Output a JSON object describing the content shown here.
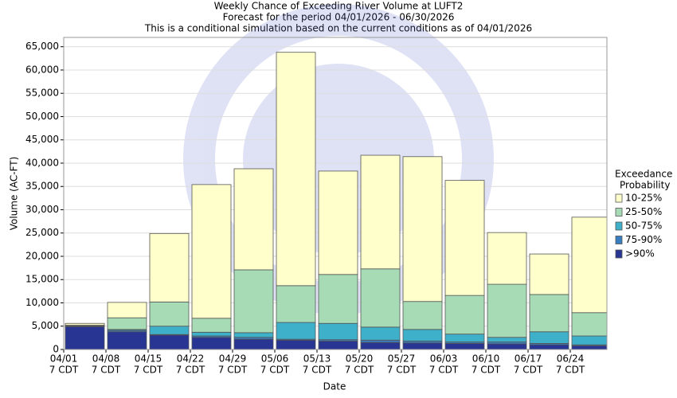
{
  "chart_data": {
    "type": "stacked_bar",
    "title": "Weekly Chance of Exceeding River Volume at LUFT2",
    "subtitle": [
      "Forecast for the period 04/01/2026 - 06/30/2026",
      "This is a conditional simulation based on the current conditions as of 04/01/2026"
    ],
    "x_label": "Date",
    "y_label": "Volume (AC-FT)",
    "categories": [
      "04/01",
      "04/08",
      "04/15",
      "04/22",
      "04/29",
      "05/06",
      "05/13",
      "05/20",
      "05/27",
      "06/03",
      "06/10",
      "06/17",
      "06/24"
    ],
    "category_sublabels": [
      "7 CDT",
      "7 CDT",
      "7 CDT",
      "7 CDT",
      "7 CDT",
      "7 CDT",
      "7 CDT",
      "7 CDT",
      "7 CDT",
      "7 CDT",
      "7 CDT",
      "7 CDT",
      "7 CDT"
    ],
    "legend_title": [
      "Exceedance",
      "Probability"
    ],
    "legend_position": "right",
    "grid": true,
    "ylim": [
      0,
      67000
    ],
    "yticks": [
      0,
      {
        "value": 5000,
        "label": "5,000"
      },
      {
        "value": 10000,
        "label": "10,000"
      },
      {
        "value": 15000,
        "label": "15,000"
      },
      {
        "value": 20000,
        "label": "20,000"
      },
      {
        "value": 25000,
        "label": "25,000"
      },
      {
        "value": 30000,
        "label": "30,000"
      },
      {
        "value": 35000,
        "label": "35,000"
      },
      {
        "value": 40000,
        "label": "40,000"
      },
      {
        "value": 45000,
        "label": "45,000"
      },
      {
        "value": 50000,
        "label": "50,000"
      },
      {
        "value": 55000,
        "label": "55,000"
      },
      {
        "value": 60000,
        "label": "60,000"
      },
      {
        "value": 65000,
        "label": "65,000"
      }
    ],
    "series": [
      {
        "name": ">90%",
        "color": "#283593",
        "values": [
          4900,
          3800,
          3100,
          2600,
          2200,
          2000,
          1800,
          1500,
          1400,
          1300,
          1200,
          1000,
          800
        ]
      },
      {
        "name": "75-90%",
        "color": "#3a7dbf",
        "values": [
          100,
          300,
          100,
          300,
          400,
          200,
          300,
          500,
          400,
          300,
          400,
          300,
          200
        ]
      },
      {
        "name": "50-75%",
        "color": "#3fb0c9",
        "values": [
          100,
          200,
          1800,
          800,
          1000,
          3600,
          3500,
          2800,
          2500,
          1700,
          1000,
          2500,
          1900
        ]
      },
      {
        "name": "25-50%",
        "color": "#a6dbb6",
        "values": [
          100,
          2500,
          5200,
          3000,
          13500,
          7900,
          10500,
          12500,
          6000,
          8300,
          11400,
          8000,
          5000
        ]
      },
      {
        "name": "10-25%",
        "color": "#ffffcc",
        "values": [
          400,
          3300,
          14700,
          28700,
          21700,
          50100,
          22200,
          24400,
          31100,
          24700,
          11100,
          8700,
          20500
        ]
      }
    ]
  }
}
